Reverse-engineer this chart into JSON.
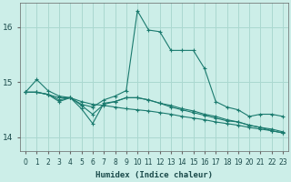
{
  "xlabel": "Humidex (Indice chaleur)",
  "ylabel": "",
  "xlim": [
    -0.5,
    23.5
  ],
  "ylim": [
    13.75,
    16.45
  ],
  "yticks": [
    14,
    15,
    16
  ],
  "xticks": [
    0,
    1,
    2,
    3,
    4,
    5,
    6,
    7,
    8,
    9,
    10,
    11,
    12,
    13,
    14,
    15,
    16,
    17,
    18,
    19,
    20,
    21,
    22,
    23
  ],
  "background_color": "#cceee8",
  "grid_color": "#aad8d0",
  "line_color": "#1a7a6e",
  "lines": [
    {
      "x": [
        0,
        1,
        2,
        3,
        4,
        5,
        6,
        7,
        8,
        9,
        10,
        11,
        12,
        13,
        14,
        15,
        16,
        17,
        18,
        19,
        20,
        21,
        22,
        23
      ],
      "y": [
        14.82,
        15.05,
        14.85,
        14.75,
        14.72,
        14.6,
        14.55,
        14.68,
        14.75,
        14.85,
        16.3,
        15.95,
        15.92,
        15.58,
        15.58,
        15.58,
        15.25,
        14.65,
        14.55,
        14.5,
        14.38,
        14.42,
        14.42,
        14.38
      ]
    },
    {
      "x": [
        0,
        1,
        2,
        3,
        4,
        5,
        6,
        7,
        8,
        9,
        10,
        11,
        12,
        13,
        14,
        15,
        16,
        17,
        18,
        19,
        20,
        21,
        22,
        23
      ],
      "y": [
        14.82,
        14.82,
        14.78,
        14.72,
        14.72,
        14.65,
        14.6,
        14.58,
        14.55,
        14.52,
        14.5,
        14.48,
        14.45,
        14.42,
        14.38,
        14.35,
        14.32,
        14.28,
        14.25,
        14.22,
        14.18,
        14.15,
        14.12,
        14.08
      ]
    },
    {
      "x": [
        0,
        1,
        2,
        3,
        4,
        5,
        6,
        7,
        8,
        9,
        10,
        11,
        12,
        13,
        14,
        15,
        16,
        17,
        18,
        19,
        20,
        21,
        22,
        23
      ],
      "y": [
        14.82,
        14.82,
        14.78,
        14.65,
        14.72,
        14.52,
        14.25,
        14.62,
        14.65,
        14.72,
        14.72,
        14.68,
        14.62,
        14.55,
        14.5,
        14.45,
        14.4,
        14.35,
        14.3,
        14.28,
        14.22,
        14.18,
        14.12,
        14.08
      ]
    },
    {
      "x": [
        0,
        1,
        2,
        3,
        4,
        5,
        6,
        7,
        8,
        9,
        10,
        11,
        12,
        13,
        14,
        15,
        16,
        17,
        18,
        19,
        20,
        21,
        22,
        23
      ],
      "y": [
        14.82,
        14.82,
        14.78,
        14.68,
        14.72,
        14.58,
        14.42,
        14.6,
        14.65,
        14.72,
        14.72,
        14.68,
        14.62,
        14.58,
        14.52,
        14.48,
        14.42,
        14.38,
        14.32,
        14.28,
        14.22,
        14.18,
        14.15,
        14.1
      ]
    }
  ]
}
